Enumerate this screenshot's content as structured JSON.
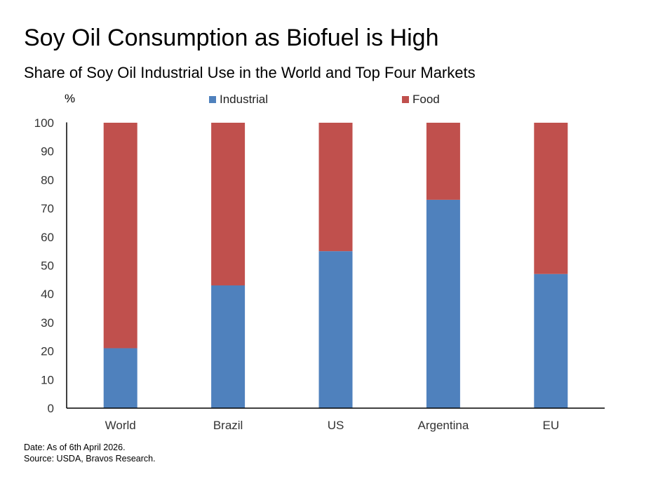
{
  "title": "Soy Oil Consumption as Biofuel is High",
  "subtitle": "Share of Soy Oil Industrial Use in the World and Top Four Markets",
  "footnotes": {
    "date": "Date: As of 6th April 2026.",
    "source": "Source: USDA, Bravos Research."
  },
  "colors": {
    "industrial": "#4f81bd",
    "food": "#c0504d"
  },
  "chart_data": {
    "type": "bar",
    "stacked": true,
    "title": "Soy Oil Consumption as Biofuel is High",
    "subtitle": "Share of Soy Oil Industrial Use in the World and Top Four Markets",
    "ylabel": "%",
    "xlabel": "",
    "ylim": [
      0,
      100
    ],
    "yticks": [
      0,
      10,
      20,
      30,
      40,
      50,
      60,
      70,
      80,
      90,
      100
    ],
    "categories": [
      "World",
      "Brazil",
      "US",
      "Argentina",
      "EU"
    ],
    "series": [
      {
        "name": "Industrial",
        "values": [
          21,
          43,
          55,
          73,
          47
        ]
      },
      {
        "name": "Food",
        "values": [
          79,
          57,
          45,
          27,
          53
        ]
      }
    ],
    "legend": "top",
    "grid": false
  }
}
